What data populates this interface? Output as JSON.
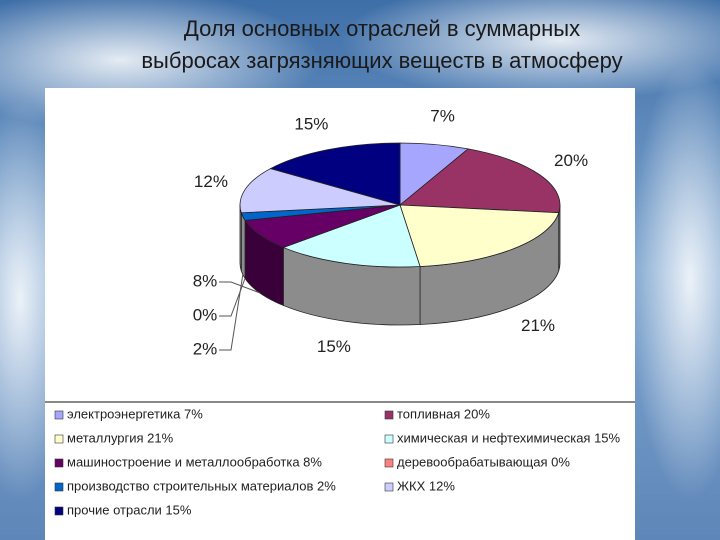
{
  "chart_data": {
    "type": "pie",
    "title_lines": [
      "Доля основных отраслей в суммарных",
      "выбросах загрязняющих веществ в атмосферу"
    ],
    "categories": [
      "электроэнергетика 7%",
      "топливная 20%",
      "металлургия 21%",
      "химическая и нефтехимическая 15%",
      "машиностроение и металлообработка 8%",
      "деревообрабатывающая 0%",
      "производство строительных материалов 2%",
      "ЖКХ 12%",
      "прочие отрасли 15%"
    ],
    "values": [
      7,
      20,
      21,
      15,
      8,
      0,
      2,
      12,
      15
    ],
    "value_labels": [
      "7%",
      "20%",
      "21%",
      "15%",
      "8%",
      "0%",
      "2%",
      "12%",
      "15%"
    ],
    "colors": [
      "#a6a6ff",
      "#993366",
      "#ffffcc",
      "#ccffff",
      "#660066",
      "#ff8080",
      "#0066cc",
      "#ccccff",
      "#000080"
    ]
  }
}
